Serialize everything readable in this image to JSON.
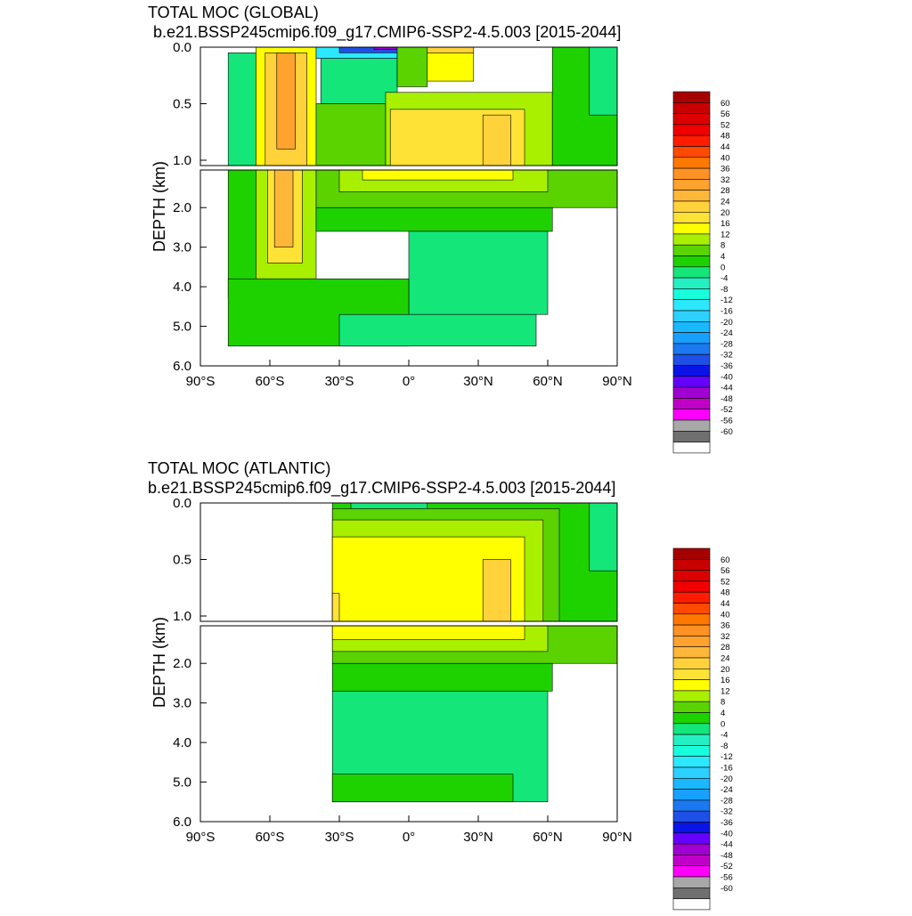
{
  "chart_data": [
    {
      "type": "contour",
      "title": "TOTAL MOC (GLOBAL)",
      "subtitle": "b.e21.BSSP245cmip6.f09_g17.CMIP6-SSP2-4.5.003 [2015-2044]",
      "xlabel": "",
      "ylabel": "DEPTH (km)",
      "x_ticks": [
        "90°S",
        "60°S",
        "30°S",
        "0°",
        "30°N",
        "60°N",
        "90°N"
      ],
      "y_ticks_upper": [
        "0.0",
        "0.5",
        "1.0"
      ],
      "y_ticks_lower": [
        "2.0",
        "3.0",
        "4.0",
        "5.0",
        "6.0"
      ],
      "xlim": [
        -90,
        90
      ],
      "ylim": [
        6.0,
        0.0
      ],
      "cells": [
        {
          "lat": [
            -78,
            -66
          ],
          "depth": [
            0.05,
            1.05
          ],
          "v": -2
        },
        {
          "lat": [
            -66,
            -40
          ],
          "depth": [
            0.0,
            1.05
          ],
          "v": 14
        },
        {
          "lat": [
            -62,
            -44
          ],
          "depth": [
            0.05,
            1.05
          ],
          "v": 22
        },
        {
          "lat": [
            -57,
            -49
          ],
          "depth": [
            0.05,
            0.9
          ],
          "v": 30
        },
        {
          "lat": [
            -40,
            -5
          ],
          "depth": [
            0.0,
            0.1
          ],
          "v": -14
        },
        {
          "lat": [
            -30,
            -2
          ],
          "depth": [
            0.0,
            0.05
          ],
          "v": -36
        },
        {
          "lat": [
            -15,
            -5
          ],
          "depth": [
            0.0,
            0.02
          ],
          "v": -48
        },
        {
          "lat": [
            -38,
            -5
          ],
          "depth": [
            0.1,
            0.5
          ],
          "v": -4
        },
        {
          "lat": [
            -5,
            8
          ],
          "depth": [
            0.0,
            0.35
          ],
          "v": 6
        },
        {
          "lat": [
            8,
            28
          ],
          "depth": [
            0.0,
            0.05
          ],
          "v": 22
        },
        {
          "lat": [
            8,
            28
          ],
          "depth": [
            0.05,
            0.3
          ],
          "v": 14
        },
        {
          "lat": [
            -40,
            -10
          ],
          "depth": [
            0.5,
            1.05
          ],
          "v": 6
        },
        {
          "lat": [
            -10,
            62
          ],
          "depth": [
            0.4,
            1.05
          ],
          "v": 10
        },
        {
          "lat": [
            -8,
            50
          ],
          "depth": [
            0.55,
            1.05
          ],
          "v": 17
        },
        {
          "lat": [
            32,
            44
          ],
          "depth": [
            0.6,
            1.05
          ],
          "v": 22
        },
        {
          "lat": [
            62,
            90
          ],
          "depth": [
            0.0,
            1.05
          ],
          "v": 2
        },
        {
          "lat": [
            78,
            90
          ],
          "depth": [
            0.0,
            0.6
          ],
          "v": -2
        },
        {
          "lat": [
            -78,
            -66
          ],
          "depth": [
            1.05,
            4.3
          ],
          "v": 2
        },
        {
          "lat": [
            -66,
            -40
          ],
          "depth": [
            1.05,
            3.8
          ],
          "v": 10
        },
        {
          "lat": [
            -61,
            -46
          ],
          "depth": [
            1.05,
            3.4
          ],
          "v": 18
        },
        {
          "lat": [
            -58,
            -50
          ],
          "depth": [
            1.05,
            3.0
          ],
          "v": 24
        },
        {
          "lat": [
            -40,
            90
          ],
          "depth": [
            1.05,
            2.0
          ],
          "v": 6
        },
        {
          "lat": [
            -30,
            60
          ],
          "depth": [
            1.05,
            1.6
          ],
          "v": 10
        },
        {
          "lat": [
            -20,
            45
          ],
          "depth": [
            1.05,
            1.3
          ],
          "v": 15
        },
        {
          "lat": [
            -40,
            62
          ],
          "depth": [
            2.0,
            2.6
          ],
          "v": 2
        },
        {
          "lat": [
            0,
            60
          ],
          "depth": [
            2.6,
            4.7
          ],
          "v": -2
        },
        {
          "lat": [
            -78,
            0
          ],
          "depth": [
            3.8,
            5.5
          ],
          "v": 2
        },
        {
          "lat": [
            -30,
            55
          ],
          "depth": [
            4.7,
            5.5
          ],
          "v": -2
        }
      ]
    },
    {
      "type": "contour",
      "title": "TOTAL MOC (ATLANTIC)",
      "subtitle": "b.e21.BSSP245cmip6.f09_g17.CMIP6-SSP2-4.5.003 [2015-2044]",
      "xlabel": "",
      "ylabel": "DEPTH (km)",
      "x_ticks": [
        "90°S",
        "60°S",
        "30°S",
        "0°",
        "30°N",
        "60°N",
        "90°N"
      ],
      "y_ticks_upper": [
        "0.0",
        "0.5",
        "1.0"
      ],
      "y_ticks_lower": [
        "2.0",
        "3.0",
        "4.0",
        "5.0",
        "6.0"
      ],
      "xlim": [
        -90,
        90
      ],
      "ylim": [
        6.0,
        0.0
      ],
      "cells": [
        {
          "lat": [
            -33,
            90
          ],
          "depth": [
            0.0,
            1.05
          ],
          "v": 2
        },
        {
          "lat": [
            -25,
            8
          ],
          "depth": [
            0.0,
            0.05
          ],
          "v": -2
        },
        {
          "lat": [
            -33,
            65
          ],
          "depth": [
            0.05,
            1.05
          ],
          "v": 6
        },
        {
          "lat": [
            -33,
            58
          ],
          "depth": [
            0.15,
            1.05
          ],
          "v": 10
        },
        {
          "lat": [
            -33,
            50
          ],
          "depth": [
            0.3,
            1.05
          ],
          "v": 15
        },
        {
          "lat": [
            32,
            44
          ],
          "depth": [
            0.5,
            1.05
          ],
          "v": 20
        },
        {
          "lat": [
            -33,
            -30
          ],
          "depth": [
            0.8,
            1.05
          ],
          "v": 18
        },
        {
          "lat": [
            78,
            90
          ],
          "depth": [
            0.0,
            0.6
          ],
          "v": -2
        },
        {
          "lat": [
            -33,
            90
          ],
          "depth": [
            1.05,
            2.0
          ],
          "v": 6
        },
        {
          "lat": [
            -33,
            60
          ],
          "depth": [
            1.05,
            1.7
          ],
          "v": 10
        },
        {
          "lat": [
            -33,
            50
          ],
          "depth": [
            1.05,
            1.4
          ],
          "v": 15
        },
        {
          "lat": [
            -33,
            62
          ],
          "depth": [
            2.0,
            2.7
          ],
          "v": 2
        },
        {
          "lat": [
            -33,
            60
          ],
          "depth": [
            2.7,
            5.5
          ],
          "v": -2
        },
        {
          "lat": [
            -33,
            45
          ],
          "depth": [
            4.8,
            5.5
          ],
          "v": 2
        }
      ]
    }
  ],
  "colorbar": {
    "labels": [
      "60",
      "56",
      "52",
      "48",
      "44",
      "40",
      "36",
      "32",
      "28",
      "24",
      "20",
      "16",
      "12",
      "8",
      "4",
      "0",
      "-4",
      "-8",
      "-12",
      "-16",
      "-20",
      "-24",
      "-28",
      "-32",
      "-36",
      "-40",
      "-44",
      "-48",
      "-52",
      "-56",
      "-60"
    ],
    "colors": [
      "#a70000",
      "#c80000",
      "#dc0000",
      "#f00000",
      "#ff1c00",
      "#ff4a00",
      "#ff7800",
      "#ff9225",
      "#ffa22e",
      "#ffb73a",
      "#ffd23c",
      "#ffe236",
      "#ffff00",
      "#a8f000",
      "#5ad300",
      "#1ed200",
      "#15e67a",
      "#25f0c3",
      "#18ffdb",
      "#2ce8ff",
      "#2cd1ff",
      "#1ab8ff",
      "#18a0ff",
      "#1a78f0",
      "#1e50e6",
      "#0a14e6",
      "#6600ff",
      "#a000d2",
      "#c000c8",
      "#ff00ff",
      "#a8a8a8",
      "#707070",
      "#ffffff"
    ]
  }
}
